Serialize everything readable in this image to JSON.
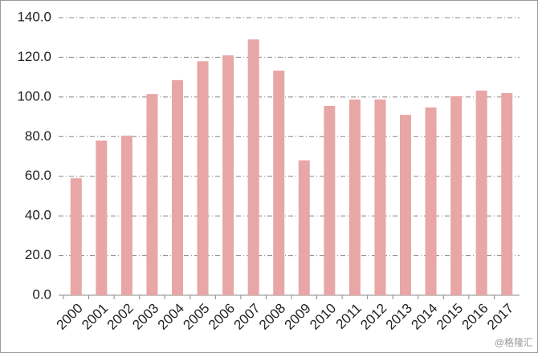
{
  "chart_data": {
    "type": "bar",
    "categories": [
      "2000",
      "2001",
      "2002",
      "2003",
      "2004",
      "2005",
      "2006",
      "2007",
      "2008",
      "2009",
      "2010",
      "2011",
      "2012",
      "2013",
      "2014",
      "2015",
      "2016",
      "2017"
    ],
    "values": [
      59,
      78,
      80.5,
      101.5,
      108.5,
      118,
      121,
      129,
      113.3,
      68,
      95.5,
      98.7,
      98.7,
      91,
      94.7,
      100.4,
      103.2,
      102
    ],
    "color": "#e8a6a6",
    "ylim": [
      0,
      140
    ],
    "yticks": [
      {
        "value": 0,
        "label": "0.0"
      },
      {
        "value": 20,
        "label": "20.0"
      },
      {
        "value": 40,
        "label": "40.0"
      },
      {
        "value": 60,
        "label": "60.0"
      },
      {
        "value": 80,
        "label": "80.0"
      },
      {
        "value": 100,
        "label": "100.0"
      },
      {
        "value": 120,
        "label": "120.0"
      },
      {
        "value": 140,
        "label": "140.0"
      }
    ],
    "grid": true,
    "watermark": "@格隆汇"
  }
}
